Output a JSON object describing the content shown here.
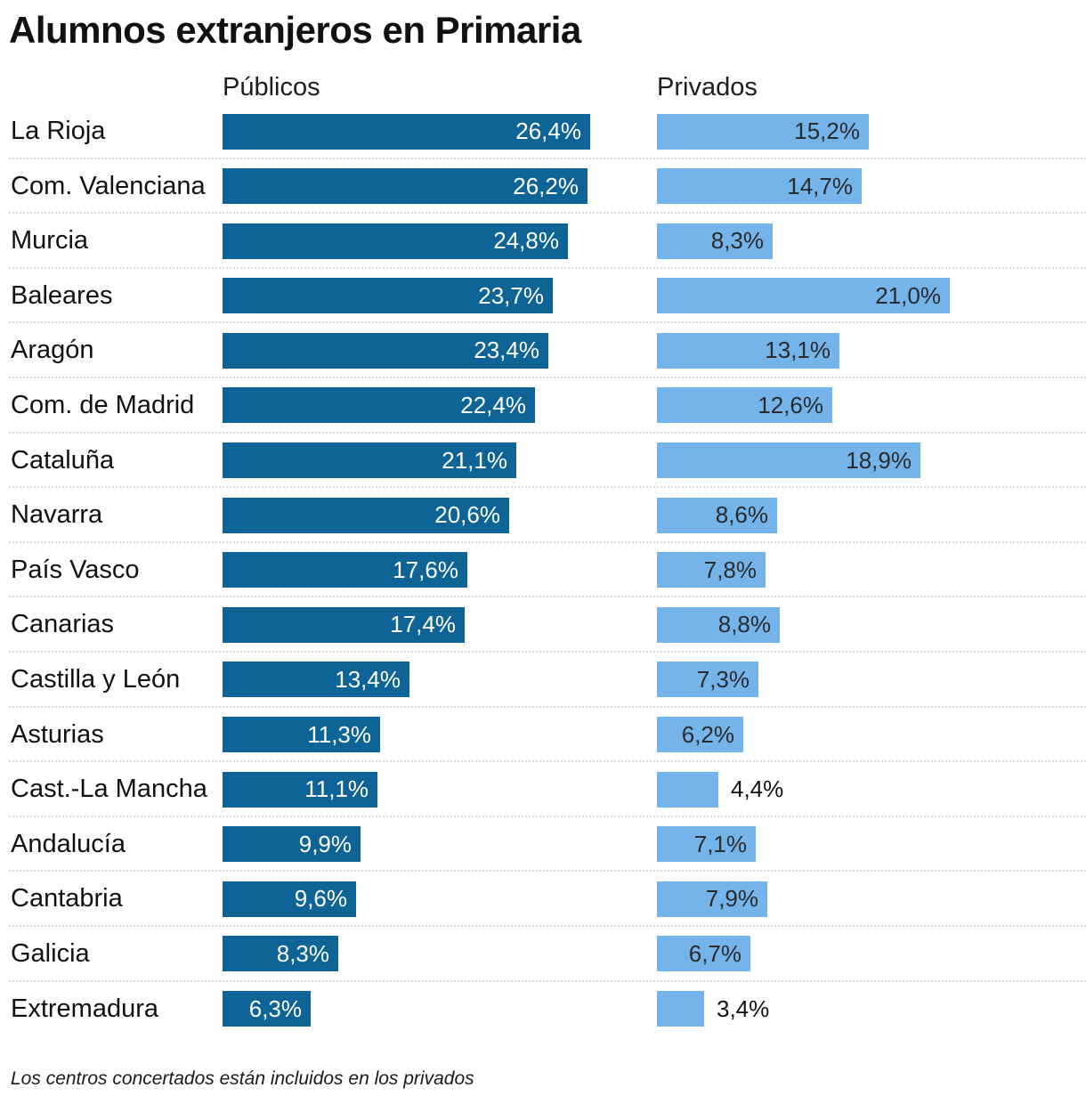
{
  "footnote": "Los centros concertados están incluidos en los privados",
  "colors": {
    "public_bar": "#0f6497",
    "private_bar": "#74b4ea",
    "public_value_text": "#ffffff",
    "private_value_text": "#2b2b2b",
    "separator": "#d8d8d8",
    "text": "#111111"
  },
  "chart_data": {
    "type": "bar",
    "title": "Alumnos extranjeros en Primaria",
    "orientation": "horizontal",
    "unit": "%",
    "decimal_separator": ",",
    "xlim": [
      0,
      26.4
    ],
    "grid": false,
    "legend_position": "column-headers-top",
    "categories": [
      "La Rioja",
      "Com. Valenciana",
      "Murcia",
      "Baleares",
      "Aragón",
      "Com. de Madrid",
      "Cataluña",
      "Navarra",
      "País Vasco",
      "Canarias",
      "Castilla y León",
      "Asturias",
      "Cast.-La Mancha",
      "Andalucía",
      "Cantabria",
      "Galicia",
      "Extremadura"
    ],
    "series": [
      {
        "name": "Públicos",
        "values": [
          26.4,
          26.2,
          24.8,
          23.7,
          23.4,
          22.4,
          21.1,
          20.6,
          17.6,
          17.4,
          13.4,
          11.3,
          11.1,
          9.9,
          9.6,
          8.3,
          6.3
        ]
      },
      {
        "name": "Privados",
        "values": [
          15.2,
          14.7,
          8.3,
          21.0,
          13.1,
          12.6,
          18.9,
          8.6,
          7.8,
          8.8,
          7.3,
          6.2,
          4.4,
          7.1,
          7.9,
          6.7,
          3.4
        ]
      }
    ]
  }
}
